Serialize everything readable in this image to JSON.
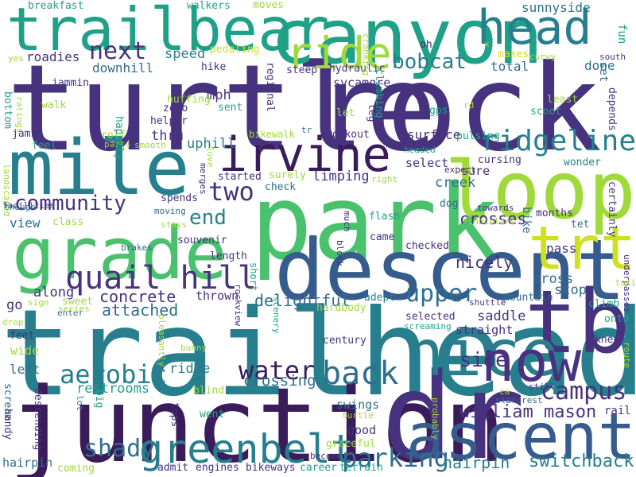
{
  "palette": {
    "purple": "#46327e",
    "dark": "#3b1c5a",
    "blue": "#365c8d",
    "steel": "#2e6e8e",
    "teal": "#277f8e",
    "cyan": "#1fa187",
    "green": "#4ac16d",
    "lime": "#9fda3a",
    "yellow": "#cde11d"
  },
  "words": [
    "turtle",
    "rock",
    "park",
    "trailhead",
    "junction",
    "dr",
    "descent",
    "canyon",
    "trailbear",
    "mile",
    "head",
    "loop",
    "grade",
    "irvine",
    "tb",
    "nice",
    "now",
    "ascent",
    "ride",
    "trt",
    "greenbelt",
    "quail hill",
    "ridgeline",
    "back",
    "campus",
    "water",
    "aerobic",
    "community",
    "next",
    "bobcat",
    "two",
    "upper",
    "parking",
    "end",
    "shady",
    "william mason",
    "hairpin",
    "switchback",
    "side",
    "crossing",
    "concrete",
    "attached",
    "along",
    "delightful",
    "crosses",
    "nicely",
    "speed",
    "downhill",
    "roadies",
    "sunnyside",
    "sycamore",
    "total",
    "done",
    "mph",
    "thru",
    "uphill",
    "creek",
    "saddle",
    "restrooms",
    "ridge",
    "view",
    "class",
    "sure",
    "limping",
    "select",
    "surface",
    "selected",
    "straight",
    "cross",
    "pass",
    "stop",
    "mountain",
    "months",
    "tet",
    "bike",
    "set",
    "fun",
    "depends",
    "certainly",
    "underpasses",
    "route",
    "rail",
    "knee",
    "onto",
    "climb",
    "taxi",
    "shuttle",
    "starcrest",
    "still",
    "ca",
    "probably",
    "good",
    "swings",
    "terrain",
    "career",
    "bikeways",
    "engines",
    "admit",
    "coming",
    "went",
    "blind",
    "tops",
    "big",
    "left",
    "wide",
    "feet",
    "go",
    "sweet",
    "thrown",
    "short",
    "souvenir",
    "length",
    "spends",
    "moving",
    "stays",
    "brakes",
    "check",
    "started",
    "surely",
    "bikewalk",
    "workout",
    "leg",
    "let",
    "gps",
    "rd",
    "least",
    "scoot",
    "wonder",
    "dog",
    "towards",
    "binoculars",
    "flash",
    "came",
    "block",
    "checked",
    "adept",
    "century",
    "hardbody",
    "scenery",
    "rockview",
    "bunny",
    "pleasantly",
    "sign",
    "drop",
    "enter",
    "series",
    "lot",
    "scream",
    "descending",
    "hairpin",
    "breakfast",
    "walkers",
    "moves",
    "yes",
    "jammin",
    "walk",
    "bottom",
    "ratings",
    "jams",
    "feel",
    "rolf",
    "parts",
    "happily",
    "smooth",
    "landscaped",
    "facilities",
    "helper",
    "huffing",
    "zero",
    "sent",
    "hike",
    "pedaling",
    "regional",
    "steep",
    "hydraulic",
    "cranking",
    "climbing",
    "pulsing",
    "cursing",
    "bit",
    "headed",
    "expect",
    "right",
    "love",
    "tr",
    "merges",
    "though",
    "x",
    "curvy",
    "makes",
    "south",
    "oh",
    "turtle",
    "graceful",
    "become",
    "much",
    "handy",
    "screaming",
    "section"
  ]
}
